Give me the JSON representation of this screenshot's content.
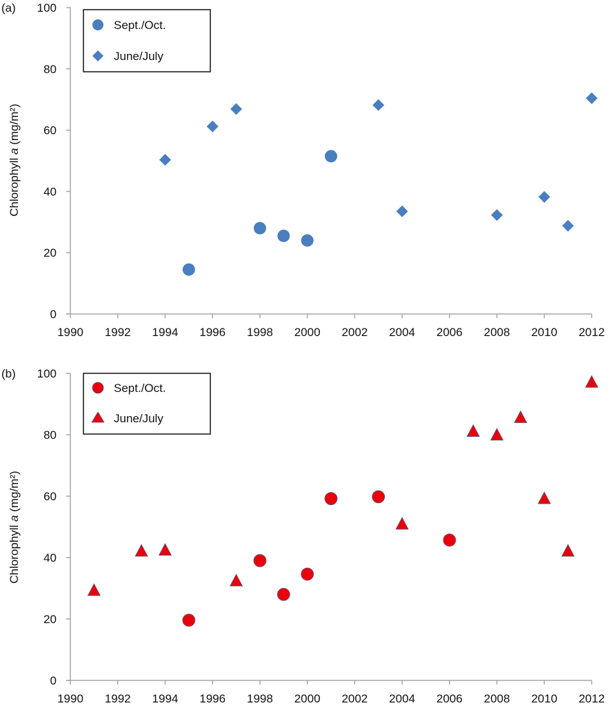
{
  "chart_data": [
    {
      "type": "scatter",
      "panel_label": "(a)",
      "ylabel_pre": "Chlorophyll ",
      "ylabel_italic": "a",
      "ylabel_post": " (mg/m²)",
      "xlim": [
        1990,
        2012
      ],
      "ylim": [
        0,
        100
      ],
      "x_ticks": [
        "1990",
        "1992",
        "1994",
        "1996",
        "1998",
        "2000",
        "2002",
        "2004",
        "2006",
        "2008",
        "2010",
        "2012"
      ],
      "y_ticks": [
        "0",
        "20",
        "40",
        "60",
        "80",
        "100"
      ],
      "grid": false,
      "legend_position": "top-left",
      "series": [
        {
          "name": "Sept./Oct.",
          "marker": "circle",
          "color": "#4a7ebf",
          "points": [
            [
              1995,
              14.5
            ],
            [
              1998,
              28
            ],
            [
              1999,
              25.5
            ],
            [
              2000,
              24
            ],
            [
              2001,
              51.5
            ]
          ]
        },
        {
          "name": "June/July",
          "marker": "diamond",
          "color": "#4a7ebf",
          "points": [
            [
              1994,
              50.3
            ],
            [
              1996,
              61.2
            ],
            [
              1997,
              66.9
            ],
            [
              2003,
              68.2
            ],
            [
              2004,
              33.5
            ],
            [
              2008,
              32.3
            ],
            [
              2010,
              38.2
            ],
            [
              2011,
              28.8
            ],
            [
              2012,
              70.4
            ]
          ]
        }
      ]
    },
    {
      "type": "scatter",
      "panel_label": "(b)",
      "ylabel_pre": "Chlorophyll ",
      "ylabel_italic": "a",
      "ylabel_post": " (mg/m²)",
      "xlim": [
        1990,
        2012
      ],
      "ylim": [
        0,
        100
      ],
      "x_ticks": [
        "1990",
        "1992",
        "1994",
        "1996",
        "1998",
        "2000",
        "2002",
        "2004",
        "2006",
        "2008",
        "2010",
        "2012"
      ],
      "y_ticks": [
        "0",
        "20",
        "40",
        "60",
        "80",
        "100"
      ],
      "grid": false,
      "legend_position": "top-left",
      "series": [
        {
          "name": "Sept./Oct.",
          "marker": "circle",
          "color": "#e8000b",
          "points": [
            [
              1995,
              19.6
            ],
            [
              1998,
              39
            ],
            [
              1999,
              28
            ],
            [
              2000,
              34.6
            ],
            [
              2001,
              59.2
            ],
            [
              2003,
              59.8
            ],
            [
              2006,
              45.7
            ]
          ]
        },
        {
          "name": "June/July",
          "marker": "triangle",
          "color": "#e8000b",
          "points": [
            [
              1991,
              29.2
            ],
            [
              1993,
              42
            ],
            [
              1994,
              42.3
            ],
            [
              1997,
              32.3
            ],
            [
              2004,
              50.8
            ],
            [
              2007,
              81
            ],
            [
              2008,
              79.8
            ],
            [
              2009,
              85.5
            ],
            [
              2010,
              59.1
            ],
            [
              2011,
              42
            ],
            [
              2012,
              97
            ]
          ]
        }
      ]
    }
  ]
}
